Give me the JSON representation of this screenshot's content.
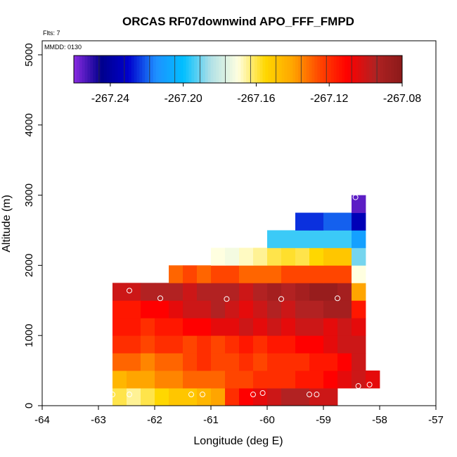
{
  "chart_data": {
    "type": "heatmap",
    "title": "ORCAS RF07downwind APO_FFF_FMPD",
    "xlabel": "Longitude (deg E)",
    "ylabel": "Altitude (m)",
    "xlim": [
      -64,
      -57
    ],
    "ylim": [
      0,
      5200
    ],
    "xticks": [
      -64,
      -63,
      -62,
      -61,
      -60,
      -59,
      -58,
      -57
    ],
    "yticks": [
      0,
      1000,
      2000,
      3000,
      4000,
      5000
    ],
    "annotations": {
      "flights": "Flts: 7",
      "date": "MMDD: 0130"
    },
    "colorbar": {
      "range": [
        -267.26,
        -267.08
      ],
      "ticks": [
        -267.24,
        -267.2,
        -267.16,
        -267.12,
        -267.08
      ],
      "tick_labels": [
        "-267.24",
        "-267.20",
        "-267.16",
        "-267.12",
        "-267.08"
      ],
      "colors": [
        "#8a2be2",
        "#00008b",
        "#0000cd",
        "#1e90ff",
        "#00bfff",
        "#b0e0e6",
        "#ffffe0",
        "#ffd700",
        "#ffa500",
        "#ff4500",
        "#ff0000",
        "#b22222",
        "#8b1a1a"
      ]
    },
    "cell_size": {
      "lon": 0.25,
      "alt": 250
    },
    "rows": [
      {
        "alt": 125,
        "lon_start": -62.75,
        "values": [
          -267.16,
          -267.165,
          -267.16,
          -267.155,
          -267.15,
          -267.15,
          -267.145,
          -267.14,
          -267.12,
          -267.11,
          -267.105,
          -267.1,
          -267.095,
          -267.095,
          -267.1,
          -267.1
        ]
      },
      {
        "alt": 375,
        "lon_start": -62.75,
        "values": [
          -267.145,
          -267.14,
          -267.14,
          -267.135,
          -267.135,
          -267.13,
          -267.13,
          -267.13,
          -267.125,
          -267.125,
          -267.12,
          -267.12,
          -267.12,
          -267.115,
          -267.115,
          -267.11,
          -267.105,
          -267.1,
          -267.1
        ]
      },
      {
        "alt": 625,
        "lon_start": -62.75,
        "values": [
          -267.13,
          -267.13,
          -267.135,
          -267.13,
          -267.13,
          -267.125,
          -267.12,
          -267.125,
          -267.125,
          -267.12,
          -267.125,
          -267.12,
          -267.12,
          -267.12,
          -267.115,
          -267.115,
          -267.11,
          -267.1
        ]
      },
      {
        "alt": 875,
        "lon_start": -62.75,
        "values": [
          -267.12,
          -267.12,
          -267.125,
          -267.12,
          -267.12,
          -267.125,
          -267.12,
          -267.125,
          -267.12,
          -267.115,
          -267.12,
          -267.115,
          -267.115,
          -267.11,
          -267.11,
          -267.105,
          -267.1,
          -267.1
        ]
      },
      {
        "alt": 1125,
        "lon_start": -62.75,
        "values": [
          -267.115,
          -267.115,
          -267.12,
          -267.115,
          -267.115,
          -267.11,
          -267.11,
          -267.105,
          -267.105,
          -267.1,
          -267.105,
          -267.1,
          -267.105,
          -267.1,
          -267.1,
          -267.105,
          -267.1,
          -267.105
        ]
      },
      {
        "alt": 1375,
        "lon_start": -62.75,
        "values": [
          -267.115,
          -267.115,
          -267.11,
          -267.11,
          -267.105,
          -267.1,
          -267.1,
          -267.095,
          -267.1,
          -267.105,
          -267.1,
          -267.095,
          -267.1,
          -267.095,
          -267.095,
          -267.09,
          -267.09,
          -267.115
        ]
      },
      {
        "alt": 1625,
        "lon_start": -62.75,
        "values": [
          -267.1,
          -267.1,
          -267.095,
          -267.095,
          -267.095,
          -267.1,
          -267.095,
          -267.095,
          -267.095,
          -267.1,
          -267.095,
          -267.09,
          -267.095,
          -267.09,
          -267.085,
          -267.085,
          -267.09,
          -267.14
        ]
      },
      {
        "alt": 1875,
        "lon_start": -61.75,
        "values": [
          -267.13,
          -267.125,
          -267.13,
          -267.125,
          -267.125,
          -267.13,
          -267.13,
          -267.13,
          -267.125,
          -267.125,
          -267.125,
          -267.125,
          -267.125,
          -267.17
        ]
      },
      {
        "alt": 2125,
        "lon_start": -61.0,
        "values": [
          -267.17,
          -267.172,
          -267.168,
          -267.165,
          -267.16,
          -267.158,
          -267.16,
          -267.155,
          -267.15,
          -267.15,
          -267.19
        ]
      },
      {
        "alt": 2375,
        "lon_start": -60.0,
        "values": [
          -267.195,
          -267.195,
          -267.195,
          -267.195,
          -267.195,
          -267.195,
          -267.21
        ]
      },
      {
        "alt": 2625,
        "lon_start": -59.5,
        "values": [
          -267.225,
          -267.225,
          -267.22,
          -267.22,
          -267.235
        ]
      },
      {
        "alt": 2875,
        "lon_start": -58.5,
        "values": [
          -267.255
        ]
      }
    ],
    "extra_cells": [
      {
        "lon": -58.125,
        "alt": 375,
        "value": -267.105
      }
    ],
    "points": [
      {
        "lon": -62.45,
        "alt": 1640
      },
      {
        "lon": -61.9,
        "alt": 1530
      },
      {
        "lon": -60.72,
        "alt": 1520
      },
      {
        "lon": -59.75,
        "alt": 1520
      },
      {
        "lon": -58.75,
        "alt": 1530
      },
      {
        "lon": -58.43,
        "alt": 2970
      },
      {
        "lon": -62.75,
        "alt": 160
      },
      {
        "lon": -62.45,
        "alt": 160
      },
      {
        "lon": -61.35,
        "alt": 160
      },
      {
        "lon": -61.15,
        "alt": 160
      },
      {
        "lon": -60.25,
        "alt": 160
      },
      {
        "lon": -60.08,
        "alt": 180
      },
      {
        "lon": -59.25,
        "alt": 160
      },
      {
        "lon": -59.12,
        "alt": 160
      },
      {
        "lon": -58.38,
        "alt": 280
      },
      {
        "lon": -58.18,
        "alt": 300
      }
    ]
  }
}
